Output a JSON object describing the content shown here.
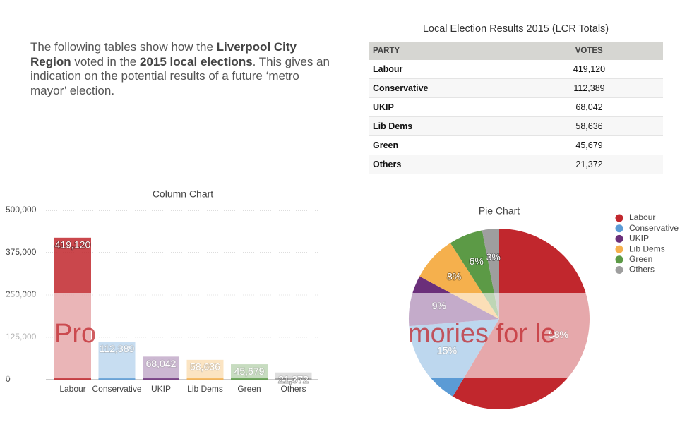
{
  "intro": [
    {
      "text": "The following tables show how the ",
      "bold": false
    },
    {
      "text": "Liverpool City Region",
      "bold": true
    },
    {
      "text": " voted in the ",
      "bold": false
    },
    {
      "text": "2015 local elections",
      "bold": true
    },
    {
      "text": ". This gives an indication on the potential results of a future ‘metro mayor’ election.",
      "bold": false
    }
  ],
  "table": {
    "title": "Local Election Results 2015 (LCR Totals)",
    "header": [
      "PARTY",
      "VOTES"
    ],
    "rows": [
      [
        "Labour",
        "419,120"
      ],
      [
        "Conservative",
        "112,389"
      ],
      [
        "UKIP",
        "68,042"
      ],
      [
        "Lib Dems",
        "58,636"
      ],
      [
        "Green",
        "45,679"
      ],
      [
        "Others",
        "21,372"
      ]
    ]
  },
  "watermark": [
    "Pro",
    "mories for le"
  ],
  "chart_data": [
    {
      "type": "bar",
      "title": "Column Chart",
      "categories": [
        "Labour",
        "Conservative",
        "UKIP",
        "Lib Dems",
        "Green",
        "Others"
      ],
      "values": [
        419120,
        112389,
        68042,
        58636,
        45679,
        21372
      ],
      "value_labels": [
        "419,120",
        "112,389",
        "68,042",
        "58,636",
        "45,679",
        "21,372"
      ],
      "colors": [
        "#c1272d",
        "#5b9bd5",
        "#6b2f7a",
        "#f5b04d",
        "#5c9a46",
        "#9e9e9e"
      ],
      "ylim": [
        0,
        500000
      ],
      "yticks": [
        0,
        {
          "value": 125000,
          "label": "125,000"
        },
        {
          "value": 250000,
          "label": "250,000"
        },
        {
          "value": 375000,
          "label": "375,000"
        },
        {
          "value": 500000,
          "label": "500,000"
        }
      ],
      "grid": true
    },
    {
      "type": "pie",
      "title": "Pie Chart",
      "categories": [
        "Labour",
        "Conservative",
        "UKIP",
        "Lib Dems",
        "Green",
        "Others"
      ],
      "values": [
        58,
        15,
        9,
        8,
        6,
        3
      ],
      "value_labels": [
        "58%",
        "15%",
        "9%",
        "8%",
        "6%",
        "3%"
      ],
      "colors": [
        "#c1272d",
        "#5b9bd5",
        "#6b2f7a",
        "#f5b04d",
        "#5c9a46",
        "#9e9e9e"
      ],
      "legend": "top-right"
    }
  ]
}
